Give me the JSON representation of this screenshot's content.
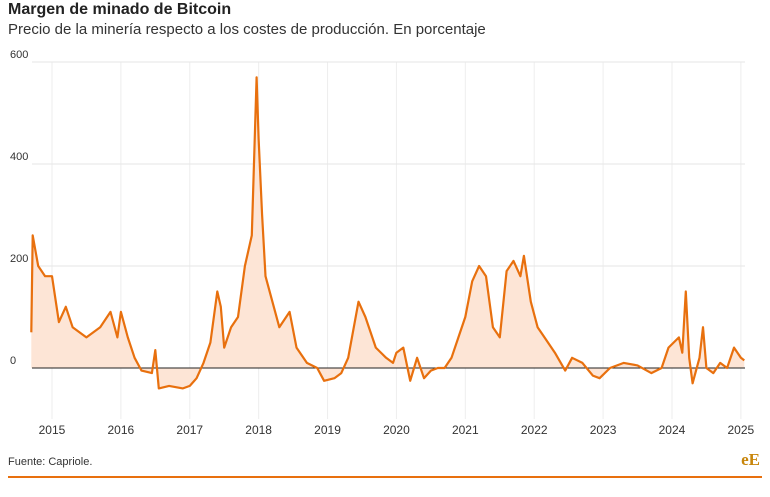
{
  "chart_data": {
    "type": "line",
    "title": "Margen de minado de Bitcoin",
    "subtitle": "Precio de la minería respecto a los costes de producción. En porcentaje",
    "source": "Fuente: Capriole.",
    "logo": "eE",
    "color": "#e8700e",
    "fill_color": "#fde5d6",
    "grid": true,
    "xlim": [
      2014.71,
      2025.06
    ],
    "xticks": [
      2015,
      2016,
      2017,
      2018,
      2019,
      2020,
      2021,
      2022,
      2023,
      2024,
      2025
    ],
    "ylim": [
      -100,
      600
    ],
    "yticks": [
      0,
      200,
      400,
      600
    ],
    "x": [
      2014.7,
      2014.72,
      2014.8,
      2014.9,
      2015.0,
      2015.1,
      2015.2,
      2015.3,
      2015.5,
      2015.7,
      2015.85,
      2015.95,
      2016.0,
      2016.1,
      2016.2,
      2016.3,
      2016.45,
      2016.5,
      2016.55,
      2016.7,
      2016.9,
      2017.0,
      2017.1,
      2017.2,
      2017.3,
      2017.4,
      2017.45,
      2017.5,
      2017.6,
      2017.7,
      2017.8,
      2017.9,
      2017.97,
      2018.0,
      2018.05,
      2018.1,
      2018.2,
      2018.3,
      2018.45,
      2018.55,
      2018.7,
      2018.85,
      2018.95,
      2019.1,
      2019.2,
      2019.3,
      2019.45,
      2019.55,
      2019.7,
      2019.85,
      2019.95,
      2020.0,
      2020.1,
      2020.2,
      2020.3,
      2020.4,
      2020.5,
      2020.6,
      2020.7,
      2020.8,
      2020.9,
      2021.0,
      2021.1,
      2021.2,
      2021.3,
      2021.4,
      2021.5,
      2021.6,
      2021.7,
      2021.8,
      2021.85,
      2021.95,
      2022.05,
      2022.15,
      2022.3,
      2022.45,
      2022.55,
      2022.7,
      2022.85,
      2022.95,
      2023.1,
      2023.3,
      2023.5,
      2023.7,
      2023.85,
      2023.95,
      2024.1,
      2024.15,
      2024.2,
      2024.25,
      2024.3,
      2024.4,
      2024.45,
      2024.5,
      2024.6,
      2024.7,
      2024.8,
      2024.9,
      2025.0,
      2025.05
    ],
    "values": [
      70,
      260,
      200,
      180,
      180,
      90,
      120,
      80,
      60,
      80,
      110,
      60,
      110,
      60,
      20,
      -5,
      -10,
      35,
      -40,
      -35,
      -40,
      -35,
      -20,
      10,
      50,
      150,
      120,
      40,
      80,
      100,
      200,
      260,
      570,
      450,
      300,
      180,
      130,
      80,
      110,
      40,
      10,
      0,
      -25,
      -20,
      -10,
      20,
      130,
      100,
      40,
      20,
      10,
      30,
      40,
      -25,
      20,
      -20,
      -5,
      0,
      0,
      20,
      60,
      100,
      170,
      200,
      180,
      80,
      60,
      190,
      210,
      180,
      220,
      130,
      80,
      60,
      30,
      -5,
      20,
      10,
      -15,
      -20,
      0,
      10,
      5,
      -10,
      0,
      40,
      60,
      30,
      150,
      20,
      -30,
      20,
      80,
      0,
      -10,
      10,
      0,
      40,
      20,
      15
    ]
  }
}
